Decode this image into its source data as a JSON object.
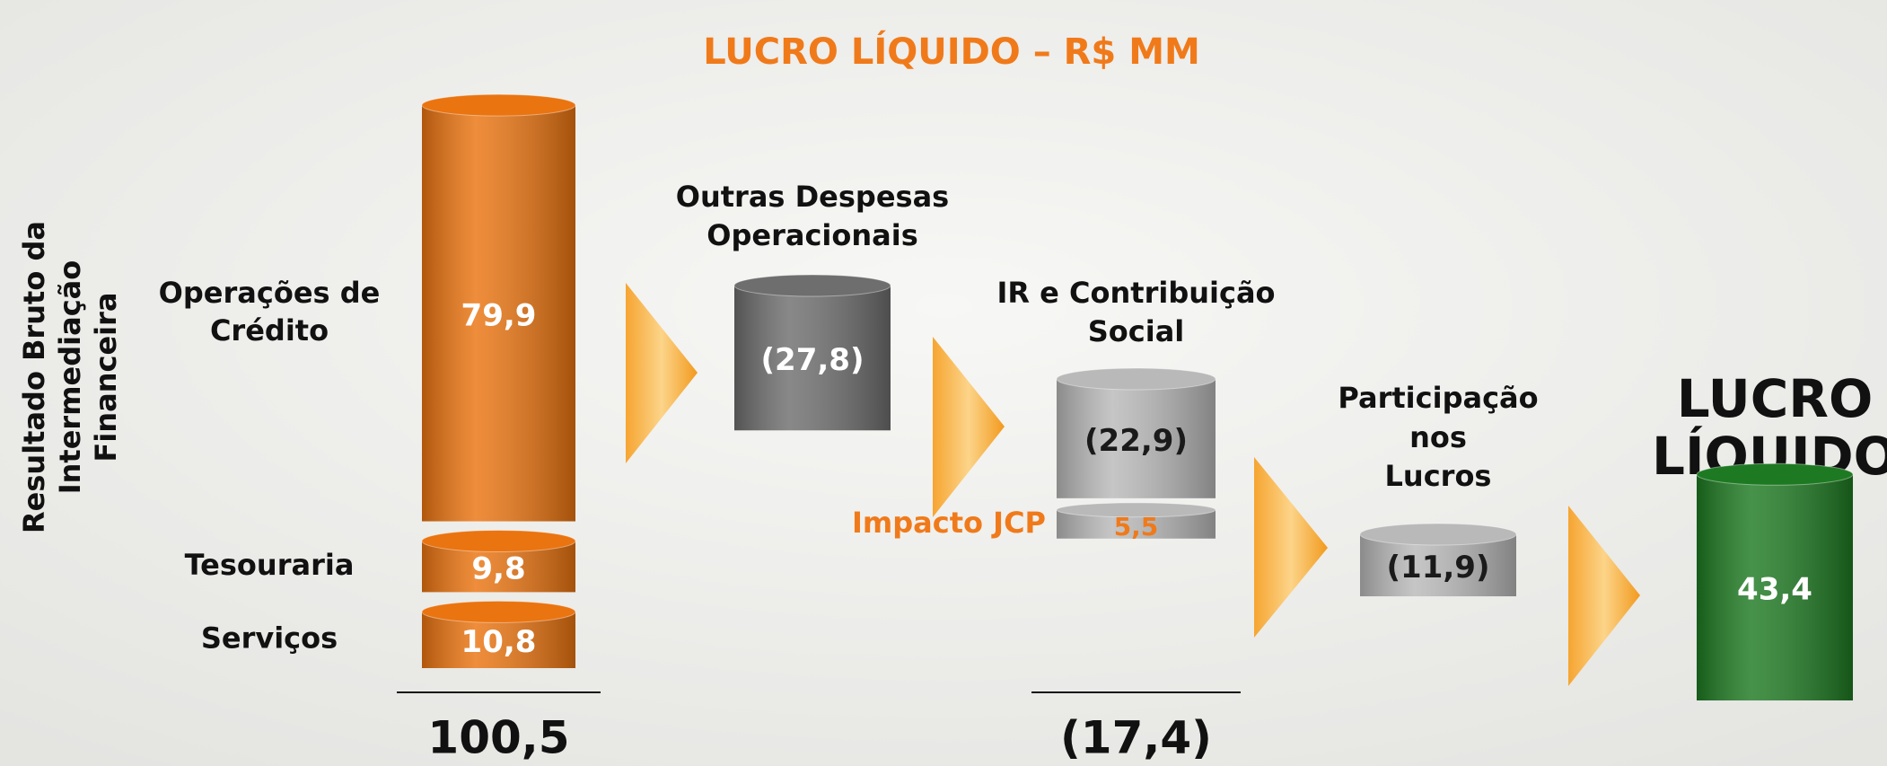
{
  "chart_data": {
    "type": "waterfall",
    "title": "LUCRO LÍQUIDO – R$ MM",
    "y_label": [
      "Resultado Bruto da",
      "Intermediação",
      "Financeira"
    ],
    "columns": [
      {
        "color": "#ea7410",
        "text_color": "#ffffff",
        "segments": [
          {
            "label": [
              "Operações de",
              "Crédito"
            ],
            "value": 79.9,
            "value_label": "79,9"
          },
          {
            "label": [
              "Tesouraria"
            ],
            "value": 9.8,
            "value_label": "9,8"
          },
          {
            "label": [
              "Serviços"
            ],
            "value": 10.8,
            "value_label": "10,8"
          }
        ],
        "total": 100.5,
        "total_label": "100,5"
      },
      {
        "label": [
          "Outras Despesas",
          "Operacionais"
        ],
        "color": "#6e6e6e",
        "text_color": "#ffffff",
        "segments": [
          {
            "value": -27.8,
            "value_label": "(27,8)"
          }
        ]
      },
      {
        "label": [
          "IR e Contribuição",
          "Social"
        ],
        "color": "#b9b9b9",
        "text_color": "#1a1a1a",
        "segments": [
          {
            "value": -22.9,
            "value_label": "(22,9)"
          },
          {
            "label": [
              "Impacto JCP"
            ],
            "label_color": "#f07a1a",
            "value": 5.5,
            "value_label": "5,5"
          }
        ],
        "total": -17.4,
        "total_label": "(17,4)"
      },
      {
        "label": [
          "Participação",
          "nos",
          "Lucros"
        ],
        "color": "#b9b9b9",
        "text_color": "#1a1a1a",
        "segments": [
          {
            "value": -11.9,
            "value_label": "(11,9)"
          }
        ]
      },
      {
        "label": [
          "LUCRO",
          "LÍQUIDO"
        ],
        "color": "#1e7a22",
        "text_color": "#ffffff",
        "segments": [
          {
            "value": 43.4,
            "value_label": "43,4"
          }
        ]
      }
    ]
  }
}
